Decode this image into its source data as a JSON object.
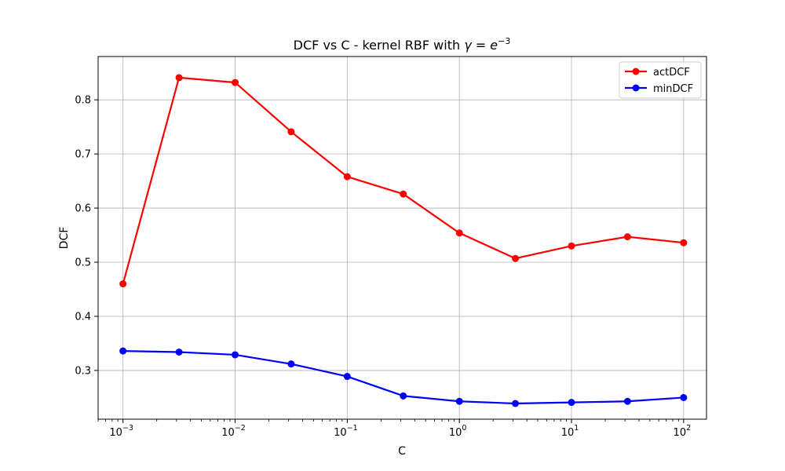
{
  "chart_data": {
    "type": "line",
    "title": {
      "prefix": "DCF vs C - kernel RBF with ",
      "gamma_symbol": "γ",
      "equals": " = ",
      "base": "e",
      "exponent": "−3"
    },
    "xlabel": "C",
    "ylabel": "DCF",
    "xscale": "log",
    "xlim": [
      0.0006,
      160
    ],
    "ylim": [
      0.21,
      0.88
    ],
    "grid": true,
    "legend_position": "top-right",
    "x": [
      0.001,
      0.00316,
      0.01,
      0.0316,
      0.1,
      0.316,
      1,
      3.16,
      10,
      31.6,
      100
    ],
    "x_ticks": [
      {
        "value": 0.001,
        "base": "10",
        "exp": "−3"
      },
      {
        "value": 0.01,
        "base": "10",
        "exp": "−2"
      },
      {
        "value": 0.1,
        "base": "10",
        "exp": "−1"
      },
      {
        "value": 1,
        "base": "10",
        "exp": "0"
      },
      {
        "value": 10,
        "base": "10",
        "exp": "1"
      },
      {
        "value": 100,
        "base": "10",
        "exp": "2"
      }
    ],
    "y_ticks": [
      {
        "value": 0.3,
        "label": "0.3"
      },
      {
        "value": 0.4,
        "label": "0.4"
      },
      {
        "value": 0.5,
        "label": "0.5"
      },
      {
        "value": 0.6,
        "label": "0.6"
      },
      {
        "value": 0.7,
        "label": "0.7"
      },
      {
        "value": 0.8,
        "label": "0.8"
      }
    ],
    "series": [
      {
        "name": "actDCF",
        "color": "#ff0000",
        "values": [
          0.46,
          0.841,
          0.832,
          0.741,
          0.658,
          0.626,
          0.554,
          0.507,
          0.53,
          0.547,
          0.536
        ]
      },
      {
        "name": "minDCF",
        "color": "#0000ff",
        "values": [
          0.336,
          0.334,
          0.329,
          0.312,
          0.289,
          0.253,
          0.243,
          0.239,
          0.241,
          0.243,
          0.25
        ]
      }
    ]
  }
}
